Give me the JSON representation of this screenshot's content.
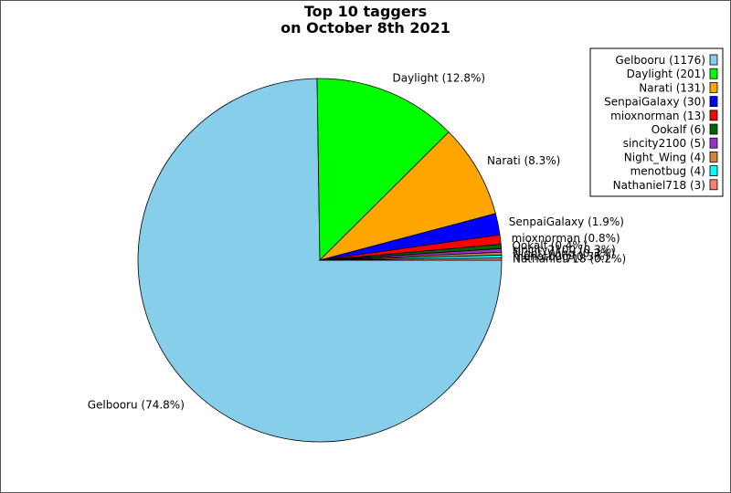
{
  "chart_data": {
    "type": "pie",
    "title": [
      "Top 10 taggers",
      "on October 8th 2021"
    ],
    "slices": [
      {
        "name": "Gelbooru",
        "value": 1176,
        "percent_label": "Gelbooru (74.8%)",
        "legend_label": "Gelbooru (1176)",
        "color": "#87ceeb"
      },
      {
        "name": "Daylight",
        "value": 201,
        "percent_label": "Daylight (12.8%)",
        "legend_label": "Daylight (201)",
        "color": "#00ff00"
      },
      {
        "name": "Narati",
        "value": 131,
        "percent_label": "Narati (8.3%)",
        "legend_label": "Narati (131)",
        "color": "#ffa500"
      },
      {
        "name": "SenpaiGalaxy",
        "value": 30,
        "percent_label": "SenpaiGalaxy (1.9%)",
        "legend_label": "SenpaiGalaxy (30)",
        "color": "#0000ff"
      },
      {
        "name": "mioxnorman",
        "value": 13,
        "percent_label": "mioxnorman (0.8%)",
        "legend_label": "mioxnorman (13)",
        "color": "#ff0000"
      },
      {
        "name": "Ookalf",
        "value": 6,
        "percent_label": "Ookalf (0.4%)",
        "legend_label": "Ookalf (6)",
        "color": "#006400"
      },
      {
        "name": "sincity2100",
        "value": 5,
        "percent_label": "sincity2100 (0.3%)",
        "legend_label": "sincity2100 (5)",
        "color": "#9932cc"
      },
      {
        "name": "Night_Wing",
        "value": 4,
        "percent_label": "Night_Wing (0.3%)",
        "legend_label": "Night_Wing (4)",
        "color": "#cd853f"
      },
      {
        "name": "menotbug",
        "value": 4,
        "percent_label": "menotbug (0.3%)",
        "legend_label": "menotbug (4)",
        "color": "#00ffff"
      },
      {
        "name": "Nathaniel718",
        "value": 3,
        "percent_label": "Nathaniel718 (0.2%)",
        "legend_label": "Nathaniel718 (3)",
        "color": "#fa8072"
      }
    ],
    "legend_position": "top-right"
  }
}
